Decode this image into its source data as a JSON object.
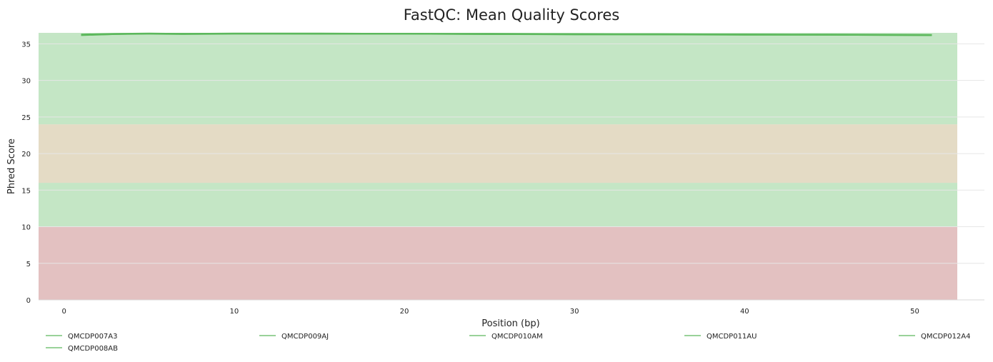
{
  "chart_data": {
    "type": "line",
    "title": "FastQC: Mean Quality Scores",
    "xlabel": "Position (bp)",
    "ylabel": "Phred Score",
    "xlim": [
      -1.5,
      52.5
    ],
    "ylim": [
      0,
      36.5
    ],
    "x_ticks": [
      0,
      10,
      20,
      30,
      40,
      50
    ],
    "y_ticks": [
      0,
      5,
      10,
      15,
      20,
      25,
      30,
      35
    ],
    "grid": true,
    "legend_position": "bottom",
    "bands": [
      {
        "from": 0,
        "to": 10,
        "color": "#e3c1c1"
      },
      {
        "from": 10,
        "to": 16,
        "color": "#c4e6c5"
      },
      {
        "from": 16,
        "to": 24,
        "color": "#e4dbc5"
      },
      {
        "from": 24,
        "to": 36.5,
        "color": "#c4e6c5"
      }
    ],
    "x": [
      1,
      3,
      5,
      7,
      10,
      15,
      20,
      25,
      30,
      35,
      40,
      45,
      51
    ],
    "series": [
      {
        "name": "QMCDP007A3",
        "color": "#5cb85c",
        "values": [
          36.2,
          36.35,
          36.4,
          36.35,
          36.4,
          36.4,
          36.4,
          36.35,
          36.3,
          36.3,
          36.25,
          36.25,
          36.2
        ]
      },
      {
        "name": "QMCDP009AJ",
        "color": "#5cb85c",
        "values": [
          36.25,
          36.35,
          36.4,
          36.4,
          36.4,
          36.4,
          36.4,
          36.4,
          36.35,
          36.3,
          36.3,
          36.25,
          36.2
        ]
      },
      {
        "name": "QMCDP010AM",
        "color": "#5cb85c",
        "values": [
          36.2,
          36.3,
          36.4,
          36.35,
          36.4,
          36.35,
          36.35,
          36.3,
          36.3,
          36.25,
          36.25,
          36.2,
          36.15
        ]
      },
      {
        "name": "QMCDP011AU",
        "color": "#5cb85c",
        "values": [
          36.3,
          36.4,
          36.45,
          36.4,
          36.45,
          36.45,
          36.4,
          36.4,
          36.35,
          36.35,
          36.3,
          36.3,
          36.25
        ]
      },
      {
        "name": "QMCDP012A4",
        "color": "#5cb85c",
        "values": [
          36.25,
          36.35,
          36.4,
          36.4,
          36.4,
          36.4,
          36.4,
          36.35,
          36.35,
          36.3,
          36.3,
          36.25,
          36.2
        ]
      },
      {
        "name": "QMCDP008AB",
        "color": "#5cb85c",
        "values": [
          36.15,
          36.3,
          36.35,
          36.3,
          36.35,
          36.35,
          36.35,
          36.3,
          36.25,
          36.25,
          36.2,
          36.2,
          36.15
        ]
      }
    ]
  }
}
